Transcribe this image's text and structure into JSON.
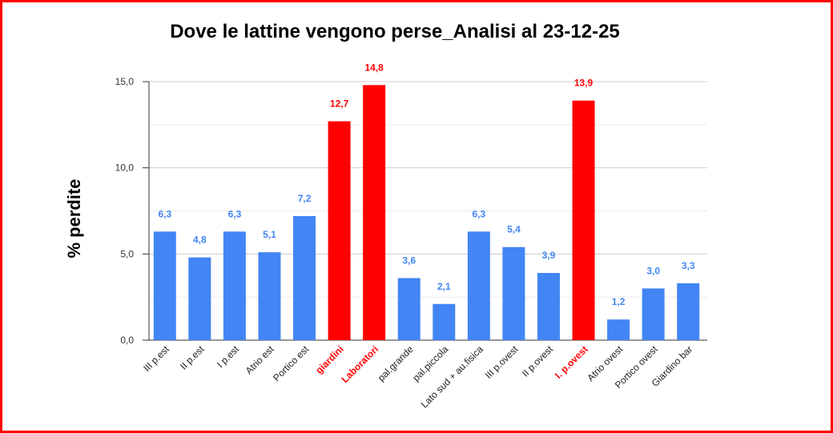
{
  "chart_data": {
    "type": "bar",
    "title": "Dove le lattine vengono perse_Analisi al 23-12-25",
    "xlabel": "",
    "ylabel": "% perdite",
    "ylim": [
      0,
      15
    ],
    "yticks": [
      "0,0",
      "5,0",
      "10,0",
      "15,0"
    ],
    "grid": true,
    "legend": "none",
    "categories": [
      "III p.est",
      "II p.est",
      "I p.est",
      "Atrio est",
      "Portico est",
      "giardini",
      "Laboratori",
      "pal.grande",
      "pal.piccola",
      "Lato sud + au.fisica",
      "III p.ovest",
      "II p.ovest",
      "I. p.ovest",
      "Atrio ovest",
      "Portico ovest",
      "Giardino bar"
    ],
    "values": [
      6.3,
      4.8,
      6.3,
      5.1,
      7.2,
      12.7,
      14.8,
      3.6,
      2.1,
      6.3,
      5.4,
      3.9,
      13.9,
      1.2,
      3.0,
      3.3
    ],
    "labels": [
      "6,3",
      "4,8",
      "6,3",
      "5,1",
      "7,2",
      "12,7",
      "14,8",
      "3,6",
      "2,1",
      "6,3",
      "5,4",
      "3,9",
      "13,9",
      "1,2",
      "3,0",
      "3,3"
    ],
    "highlighted": [
      false,
      false,
      false,
      false,
      false,
      true,
      true,
      false,
      false,
      false,
      false,
      false,
      true,
      false,
      false,
      false
    ],
    "colors": {
      "normal": "#4285f4",
      "highlight": "#ff0000",
      "normal_label": "#4285f4",
      "highlight_label": "#ff0000"
    }
  }
}
